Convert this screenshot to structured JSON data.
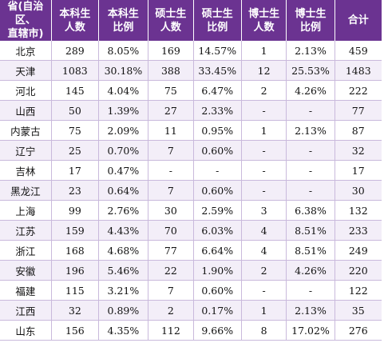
{
  "table": {
    "headers": [
      [
        "省(自治区、",
        "直辖市)"
      ],
      [
        "本科生",
        "人数"
      ],
      [
        "本科生",
        "比例"
      ],
      [
        "硕士生",
        "人数"
      ],
      [
        "硕士生",
        "比例"
      ],
      [
        "博士生",
        "人数"
      ],
      [
        "博士生",
        "比例"
      ],
      [
        "合计"
      ]
    ],
    "rows": [
      [
        "北京",
        "289",
        "8.05%",
        "169",
        "14.57%",
        "1",
        "2.13%",
        "459"
      ],
      [
        "天津",
        "1083",
        "30.18%",
        "388",
        "33.45%",
        "12",
        "25.53%",
        "1483"
      ],
      [
        "河北",
        "145",
        "4.04%",
        "75",
        "6.47%",
        "2",
        "4.26%",
        "222"
      ],
      [
        "山西",
        "50",
        "1.39%",
        "27",
        "2.33%",
        "-",
        "-",
        "77"
      ],
      [
        "内蒙古",
        "75",
        "2.09%",
        "11",
        "0.95%",
        "1",
        "2.13%",
        "87"
      ],
      [
        "辽宁",
        "25",
        "0.70%",
        "7",
        "0.60%",
        "-",
        "-",
        "32"
      ],
      [
        "吉林",
        "17",
        "0.47%",
        "-",
        "-",
        "-",
        "-",
        "17"
      ],
      [
        "黑龙江",
        "23",
        "0.64%",
        "7",
        "0.60%",
        "-",
        "-",
        "30"
      ],
      [
        "上海",
        "99",
        "2.76%",
        "30",
        "2.59%",
        "3",
        "6.38%",
        "132"
      ],
      [
        "江苏",
        "159",
        "4.43%",
        "70",
        "6.03%",
        "4",
        "8.51%",
        "233"
      ],
      [
        "浙江",
        "168",
        "4.68%",
        "77",
        "6.64%",
        "4",
        "8.51%",
        "249"
      ],
      [
        "安徽",
        "196",
        "5.46%",
        "22",
        "1.90%",
        "2",
        "4.26%",
        "220"
      ],
      [
        "福建",
        "115",
        "3.21%",
        "7",
        "0.60%",
        "-",
        "-",
        "122"
      ],
      [
        "江西",
        "32",
        "0.89%",
        "2",
        "0.17%",
        "1",
        "2.13%",
        "35"
      ],
      [
        "山东",
        "156",
        "4.35%",
        "112",
        "9.66%",
        "8",
        "17.02%",
        "276"
      ]
    ]
  },
  "colors": {
    "header_bg": "#6b3391",
    "header_text": "#ffffff",
    "stripe_bg": "#f3eef8",
    "grid_line": "#c9b9dc"
  }
}
